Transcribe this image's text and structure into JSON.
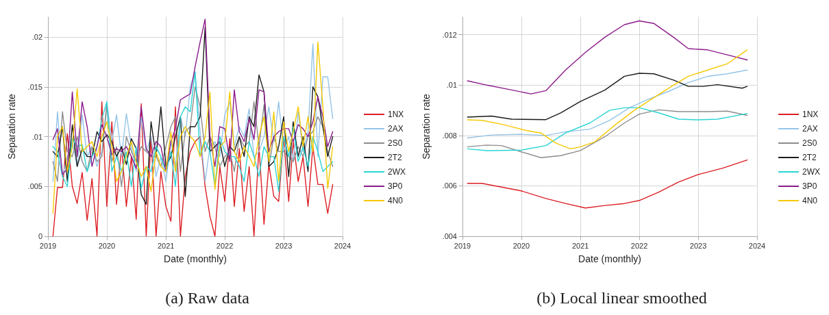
{
  "chart_data": [
    {
      "type": "line",
      "title": "(a) Raw data",
      "xlabel": "Date (monthly)",
      "ylabel": "Separation rate",
      "legend": "right",
      "grid": true,
      "marker": "none",
      "line_style": "solid",
      "x": [
        "2019-02",
        "2019-03",
        "2019-04",
        "2019-05",
        "2019-06",
        "2019-07",
        "2019-08",
        "2019-09",
        "2019-10",
        "2019-11",
        "2019-12",
        "2020-01",
        "2020-02",
        "2020-03",
        "2020-04",
        "2020-05",
        "2020-06",
        "2020-07",
        "2020-08",
        "2020-09",
        "2020-10",
        "2020-11",
        "2020-12",
        "2021-01",
        "2021-02",
        "2021-03",
        "2021-04",
        "2021-05",
        "2021-06",
        "2021-07",
        "2021-08",
        "2021-09",
        "2021-10",
        "2021-11",
        "2021-12",
        "2022-01",
        "2022-02",
        "2022-03",
        "2022-04",
        "2022-05",
        "2022-06",
        "2022-07",
        "2022-08",
        "2022-09",
        "2022-10",
        "2022-11",
        "2022-12",
        "2023-01",
        "2023-02",
        "2023-03",
        "2023-04",
        "2023-05",
        "2023-06",
        "2023-07",
        "2023-08",
        "2023-09",
        "2023-10",
        "2023-11"
      ],
      "xlim": [
        "2019",
        "2024"
      ],
      "xticks": [
        "2019",
        "2020",
        "2021",
        "2022",
        "2023",
        "2024"
      ],
      "ylim": [
        0,
        0.022
      ],
      "yticks": [
        {
          "value": 0,
          "label": "0"
        },
        {
          "value": 0.005,
          "label": ".005"
        },
        {
          "value": 0.01,
          "label": ".01"
        },
        {
          "value": 0.015,
          "label": ".015"
        },
        {
          "value": 0.02,
          "label": ".02"
        }
      ],
      "series": [
        {
          "name": "1NX",
          "color": "#dc1e24",
          "values": [
            0,
            0.0049,
            0.0049,
            0.0103,
            0.005,
            0.0033,
            0.0064,
            0.0016,
            0.0058,
            0,
            0.0135,
            0.003,
            0.0115,
            0.0032,
            0.009,
            0.003,
            0.008,
            0.0017,
            0.0133,
            0,
            0.01,
            0,
            0.0065,
            0.003,
            0.0015,
            0.013,
            0,
            0.006,
            0.0085,
            0.0095,
            0.01,
            0.005,
            0.002,
            0,
            0.007,
            0.0035,
            0.0098,
            0.003,
            0.0088,
            0.0025,
            0.007,
            0,
            0.009,
            0.0012,
            0.0072,
            0.004,
            0.0035,
            0.01,
            0.0035,
            0.0095,
            0.0055,
            0.008,
            0.003,
            0.009,
            0.0052,
            0.0052,
            0.0023,
            0.0052
          ]
        },
        {
          "name": "2AX",
          "color": "#94c4e8",
          "values": [
            0.0055,
            0.0125,
            0.006,
            0.008,
            0.0095,
            0.007,
            0.0122,
            0.008,
            0.009,
            0.007,
            0.0085,
            0.0135,
            0.0095,
            0.0122,
            0.008,
            0.0123,
            0.009,
            0.0065,
            0.012,
            0.0085,
            0.01,
            0.006,
            0.008,
            0.0055,
            0.0095,
            0.007,
            0.012,
            0.01,
            0.015,
            0.0165,
            0.0105,
            0.0055,
            0.009,
            0.0095,
            0.008,
            0.0122,
            0.0135,
            0.009,
            0.011,
            0.01,
            0.0128,
            0.008,
            0.0085,
            0.01,
            0.013,
            0.0095,
            0.0135,
            0.0085,
            0.01,
            0.0075,
            0.0125,
            0.0085,
            0.0105,
            0.0193,
            0.008,
            0.016,
            0.016,
            0.0118
          ]
        },
        {
          "name": "2S0",
          "color": "#8c8c8c",
          "values": [
            0.0075,
            0.0055,
            0.0125,
            0.0085,
            0.008,
            0.01,
            0.0075,
            0.0065,
            0.009,
            0.0075,
            0.008,
            0.0132,
            0.0075,
            0.009,
            0.005,
            0.01,
            0.0085,
            0.0075,
            0.009,
            0.0085,
            0.008,
            0.008,
            0.007,
            0.009,
            0.011,
            0.012,
            0.0065,
            0.0105,
            0.011,
            0.015,
            0.013,
            0.0085,
            0.01,
            0.009,
            0.007,
            0.008,
            0.0085,
            0.0065,
            0.01,
            0.009,
            0.0095,
            0.0135,
            0.009,
            0.0132,
            0.007,
            0.01,
            0.0085,
            0.0085,
            0.008,
            0.0075,
            0.009,
            0.008,
            0.01,
            0.0105,
            0.012,
            0.011,
            0.0085,
            0.007
          ]
        },
        {
          "name": "2T2",
          "color": "#1a1a1a",
          "values": [
            0.0085,
            0.008,
            0.011,
            0.0055,
            0.0112,
            0.007,
            0.0088,
            0.008,
            0.008,
            0.0105,
            0.0095,
            0.0102,
            0.0095,
            0.008,
            0.009,
            0.0072,
            0.0098,
            0.0088,
            0.0042,
            0.0032,
            0.0115,
            0.008,
            0.013,
            0.007,
            0.008,
            0.01,
            0.012,
            0.004,
            0.011,
            0.011,
            0.012,
            0.021,
            0.0085,
            0.009,
            0.0095,
            0.007,
            0.009,
            0.0085,
            0.01,
            0.008,
            0.012,
            0.011,
            0.0162,
            0.0145,
            0.007,
            0.0075,
            0.009,
            0.012,
            0.006,
            0.0115,
            0.008,
            0.01,
            0.0065,
            0.015,
            0.014,
            0.011,
            0.008,
            0.01
          ]
        },
        {
          "name": "2WX",
          "color": "#2ad4d4",
          "values": [
            0.009,
            0.0085,
            0.006,
            0.005,
            0.0098,
            0.009,
            0.0092,
            0.0065,
            0.008,
            0.009,
            0.0118,
            0.0135,
            0.0065,
            0.008,
            0.0065,
            0.0085,
            0.005,
            0.009,
            0.0048,
            0.007,
            0.0065,
            0.009,
            0.008,
            0.0065,
            0.0085,
            0.005,
            0.012,
            0.013,
            0.0125,
            0.0165,
            0.008,
            0.0095,
            0.0085,
            0.005,
            0.01,
            0.0085,
            0.008,
            0.008,
            0.007,
            0.0055,
            0.0095,
            0.008,
            0.006,
            0.009,
            0.008,
            0.008,
            0.0045,
            0.01,
            0.008,
            0.011,
            0.0075,
            0.009,
            0.007,
            0.01,
            0.0085,
            0.0065,
            0.007,
            0.0075
          ]
        },
        {
          "name": "3P0",
          "color": "#8b1a8b",
          "values": [
            0.0097,
            0.0108,
            0.0062,
            0.0068,
            0.0145,
            0.008,
            0.0135,
            0.011,
            0.007,
            0.009,
            0.0112,
            0.01,
            0.0082,
            0.0088,
            0.0085,
            0.009,
            0.008,
            0.0068,
            0.013,
            0.0088,
            0.008,
            0.0095,
            0.009,
            0.0065,
            0.0095,
            0.0108,
            0.0137,
            0.014,
            0.0143,
            0.017,
            0.0195,
            0.0218,
            0.01,
            0.007,
            0.011,
            0.0108,
            0.0075,
            0.0147,
            0.0105,
            0.0095,
            0.0118,
            0.0097,
            0.0147,
            0.0145,
            0.0085,
            0.01,
            0.0105,
            0.0108,
            0.0108,
            0.0095,
            0.0112,
            0.0108,
            0.01,
            0.0115,
            0.014,
            0.012,
            0.009,
            0.0105
          ]
        },
        {
          "name": "4N0",
          "color": "#f5c800",
          "values": [
            0.0023,
            0.01,
            0.011,
            0.0065,
            0.009,
            0.0148,
            0.0085,
            0.009,
            0.0095,
            0.008,
            0.01,
            0.0115,
            0.009,
            0.0055,
            0.0065,
            0.008,
            0.0095,
            0.0075,
            0.006,
            0.007,
            0.0045,
            0.0085,
            0.007,
            0.0065,
            0.0105,
            0.0065,
            0.01,
            0.011,
            0.01,
            0.0095,
            0.008,
            0.01,
            0.0145,
            0.0047,
            0.009,
            0.0095,
            0.0145,
            0.0085,
            0.0075,
            0.009,
            0.008,
            0.007,
            0.01,
            0.012,
            0.0075,
            0.0125,
            0.0055,
            0.0115,
            0.0085,
            0.0105,
            0.013,
            0.009,
            0.012,
            0.0085,
            0.0195,
            0.013,
            0.0048,
            0.009
          ]
        }
      ]
    },
    {
      "type": "line",
      "title": "(b) Local linear smoothed",
      "xlabel": "Date (monthly)",
      "ylabel": "Separation rate",
      "legend": "right",
      "grid": true,
      "marker": "none",
      "line_style": "solid",
      "xlim": [
        "2019",
        "2024"
      ],
      "xticks": [
        "2019",
        "2020",
        "2021",
        "2022",
        "2023",
        "2024"
      ],
      "ylim": [
        0.004,
        0.0127
      ],
      "yticks": [
        {
          "value": 0.004,
          "label": ".004"
        },
        {
          "value": 0.006,
          "label": ".006"
        },
        {
          "value": 0.008,
          "label": ".008"
        },
        {
          "value": 0.01,
          "label": ".01"
        },
        {
          "value": 0.012,
          "label": ".012"
        }
      ],
      "series": [
        {
          "name": "1NX",
          "color": "#dc1e24",
          "x": [
            "2019-02",
            "2019-05",
            "2019-09",
            "2020-01",
            "2020-06",
            "2020-10",
            "2021-02",
            "2021-06",
            "2021-10",
            "2022-01",
            "2022-05",
            "2022-09",
            "2023-01",
            "2023-06",
            "2023-11"
          ],
          "values": [
            0.0061,
            0.0061,
            0.00595,
            0.0058,
            0.0055,
            0.0053,
            0.00512,
            0.00522,
            0.0053,
            0.00542,
            0.00575,
            0.00615,
            0.00645,
            0.0067,
            0.00703
          ]
        },
        {
          "name": "2AX",
          "color": "#94c4e8",
          "x": [
            "2019-02",
            "2019-07",
            "2020-01",
            "2020-06",
            "2020-10",
            "2021-03",
            "2021-07",
            "2021-11",
            "2022-03",
            "2022-07",
            "2022-11",
            "2023-03",
            "2023-07",
            "2023-11"
          ],
          "values": [
            0.0079,
            0.00802,
            0.00805,
            0.008,
            0.00815,
            0.00825,
            0.0086,
            0.0091,
            0.00945,
            0.00975,
            0.0101,
            0.01035,
            0.01045,
            0.0106
          ]
        },
        {
          "name": "2S0",
          "color": "#8c8c8c",
          "x": [
            "2019-02",
            "2019-06",
            "2019-09",
            "2020-01",
            "2020-05",
            "2020-09",
            "2021-01",
            "2021-06",
            "2021-10",
            "2022-01",
            "2022-05",
            "2022-09",
            "2023-03",
            "2023-07",
            "2023-11"
          ],
          "values": [
            0.00755,
            0.00762,
            0.0076,
            0.00735,
            0.00712,
            0.0072,
            0.0074,
            0.00795,
            0.0085,
            0.00885,
            0.00902,
            0.00895,
            0.00895,
            0.00897,
            0.0088
          ]
        },
        {
          "name": "2T2",
          "color": "#1a1a1a",
          "x": [
            "2019-02",
            "2019-07",
            "2019-11",
            "2020-06",
            "2020-09",
            "2021-01",
            "2021-06",
            "2021-10",
            "2022-01",
            "2022-04",
            "2022-08",
            "2022-11",
            "2023-02",
            "2023-05",
            "2023-10",
            "2023-11"
          ],
          "values": [
            0.00873,
            0.00877,
            0.00865,
            0.00863,
            0.0089,
            0.00935,
            0.0098,
            0.01035,
            0.01047,
            0.01045,
            0.0102,
            0.00995,
            0.00995,
            0.01002,
            0.00988,
            0.00995
          ]
        },
        {
          "name": "2WX",
          "color": "#2ad4d4",
          "x": [
            "2019-02",
            "2019-06",
            "2020-01",
            "2020-06",
            "2020-10",
            "2021-03",
            "2021-07",
            "2021-10",
            "2022-01",
            "2022-05",
            "2022-09",
            "2023-01",
            "2023-05",
            "2023-11"
          ],
          "values": [
            0.00747,
            0.0074,
            0.00742,
            0.0076,
            0.0081,
            0.0085,
            0.009,
            0.0091,
            0.0091,
            0.0089,
            0.00865,
            0.00862,
            0.00865,
            0.00887
          ]
        },
        {
          "name": "3P0",
          "color": "#8b1a8b",
          "x": [
            "2019-02",
            "2019-06",
            "2019-10",
            "2020-03",
            "2020-06",
            "2020-10",
            "2021-02",
            "2021-06",
            "2021-10",
            "2022-01",
            "2022-04",
            "2022-08",
            "2022-11",
            "2023-03",
            "2023-07",
            "2023-11"
          ],
          "values": [
            0.01017,
            0.01,
            0.00985,
            0.00965,
            0.00978,
            0.0106,
            0.0113,
            0.0119,
            0.0124,
            0.01255,
            0.01245,
            0.0119,
            0.01145,
            0.0114,
            0.0112,
            0.011
          ]
        },
        {
          "name": "4N0",
          "color": "#f5c800",
          "x": [
            "2019-02",
            "2019-05",
            "2019-09",
            "2020-02",
            "2020-05",
            "2020-08",
            "2020-11",
            "2021-01",
            "2021-04",
            "2021-08",
            "2021-12",
            "2022-04",
            "2022-08",
            "2022-11",
            "2023-03",
            "2023-07",
            "2023-11"
          ],
          "values": [
            0.00862,
            0.0086,
            0.00845,
            0.0082,
            0.0081,
            0.0077,
            0.00747,
            0.00755,
            0.00775,
            0.0084,
            0.009,
            0.0095,
            0.01,
            0.01035,
            0.0106,
            0.01085,
            0.0114
          ]
        }
      ]
    }
  ]
}
